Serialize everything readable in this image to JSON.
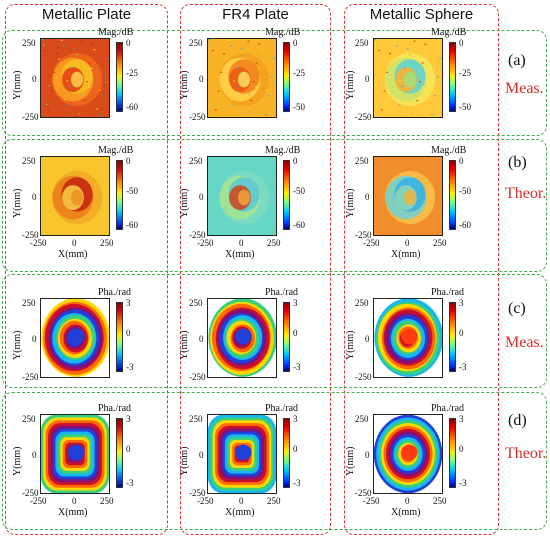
{
  "columns": [
    {
      "title": "Metallic Plate"
    },
    {
      "title": "FR4 Plate"
    },
    {
      "title": "Metallic Sphere"
    }
  ],
  "rows": [
    {
      "id": "(a)",
      "kind": "Meas.",
      "quantity": "magnitude"
    },
    {
      "id": "(b)",
      "kind": "Theor.",
      "quantity": "magnitude"
    },
    {
      "id": "(c)",
      "kind": "Meas.",
      "quantity": "phase"
    },
    {
      "id": "(d)",
      "kind": "Theor.",
      "quantity": "phase"
    }
  ],
  "labels": {
    "mag_unit": "Mag./dB",
    "pha_unit": "Pha./rad",
    "x_axis": "X(mm)",
    "y_axis": "Y(mm)",
    "tick_neg": "-250",
    "tick_zero": "0",
    "tick_pos": "250"
  },
  "colorbars": {
    "r0c0": [
      "0",
      "-25",
      "-60"
    ],
    "r0c1": [
      "0",
      "-25",
      "-50"
    ],
    "r0c2": [
      "0",
      "-25",
      "-50"
    ],
    "r1c0": [
      "0",
      "-50",
      "-60"
    ],
    "r1c1": [
      "0",
      "-50",
      "-60"
    ],
    "r1c2": [
      "0",
      "-50",
      "-60"
    ],
    "r2c0": [
      "3",
      "0",
      "-3"
    ],
    "r2c1": [
      "3",
      "0",
      "-3"
    ],
    "r2c2": [
      "3",
      "0",
      "-3"
    ],
    "r3c0": [
      "3",
      "0",
      "-3"
    ],
    "r3c1": [
      "3",
      "0",
      "-3"
    ],
    "r3c2": [
      "3",
      "0",
      "-3"
    ]
  },
  "colors": {
    "column_border": "#e03030",
    "row_border": "#3fae49",
    "row_kind_text": "#d0312d"
  }
}
